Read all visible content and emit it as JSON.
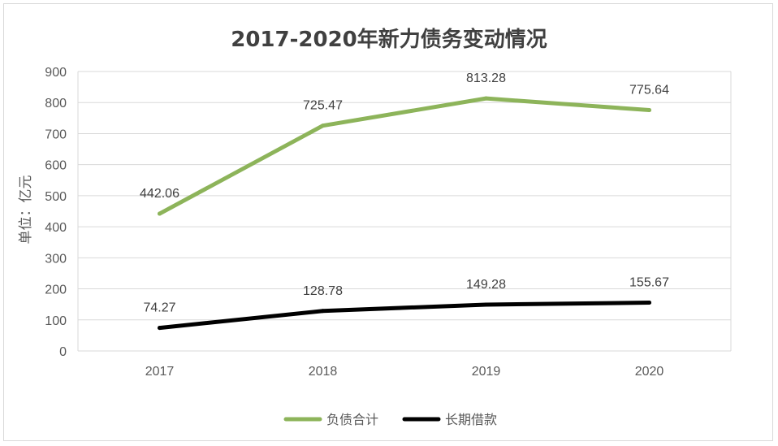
{
  "chart_data": {
    "type": "line",
    "title": "2017-2020年新力债务变动情况",
    "ylabel": "单位：亿元",
    "xlabel": "",
    "categories": [
      "2017",
      "2018",
      "2019",
      "2020"
    ],
    "ylim": [
      0,
      900
    ],
    "yticks": [
      0,
      100,
      200,
      300,
      400,
      500,
      600,
      700,
      800,
      900
    ],
    "grid": true,
    "legend_position": "bottom",
    "series": [
      {
        "name": "负债合计",
        "color": "#8db45a",
        "values": [
          442.06,
          725.47,
          813.28,
          775.64
        ],
        "labels": [
          "442.06",
          "725.47",
          "813.28",
          "775.64"
        ]
      },
      {
        "name": "长期借款",
        "color": "#000000",
        "values": [
          74.27,
          128.78,
          149.28,
          155.67
        ],
        "labels": [
          "74.27",
          "128.78",
          "149.28",
          "155.67"
        ]
      }
    ]
  }
}
